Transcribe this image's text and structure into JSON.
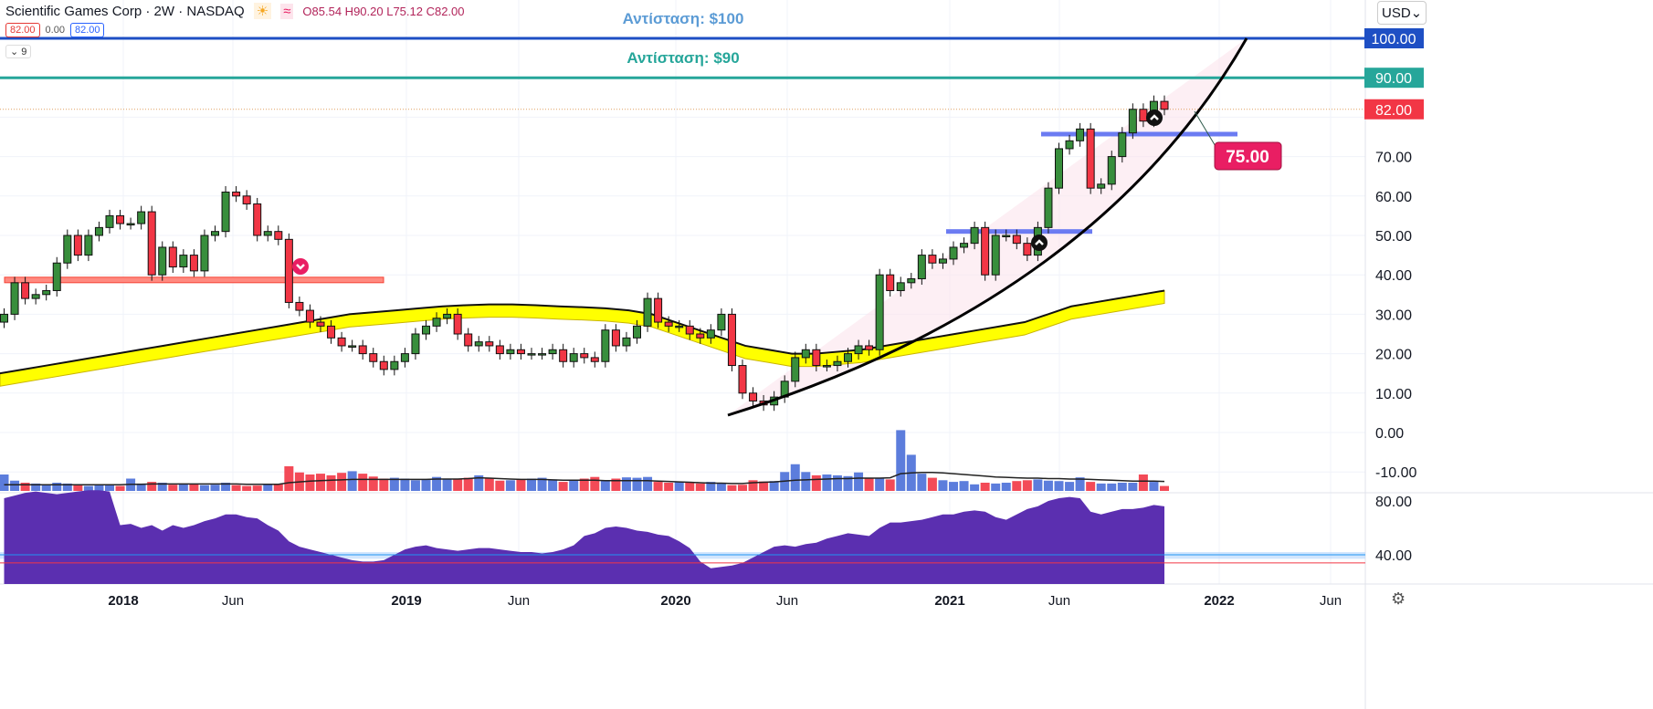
{
  "header": {
    "title": "Scientific Games Corp · 2W · NASDAQ",
    "ohlc": "O85.54 H90.20 L75.12 C82.00",
    "sell": "82.00",
    "spread": "0.00",
    "buy": "82.00",
    "indicators": "9",
    "currency": "USD"
  },
  "icons": {
    "session": "sun-icon",
    "data": "wave-icon",
    "settings": "gear-icon",
    "collapse": "chevron-down-icon"
  },
  "chart_data": {
    "type": "candlestick",
    "annotations": [
      {
        "text": "Αντίσταση: $100",
        "price": 100,
        "color": "#1e4fc4"
      },
      {
        "text": "Αντίσταση: $90",
        "price": 90,
        "color": "#26a69a"
      }
    ],
    "levels": {
      "resistance_100": 100,
      "resistance_90": 90,
      "last_price": 82,
      "support_75": 75.7,
      "support_51": 51,
      "old_support": 38.7,
      "callout": "75.00"
    },
    "price_ticks": [
      "100.00",
      "90.00",
      "82.00",
      "70.00",
      "60.00",
      "50.00",
      "40.00",
      "30.00",
      "20.00",
      "10.00",
      "0.00",
      "-10.00"
    ],
    "osc_ticks": [
      "80.00",
      "40.00"
    ],
    "time_ticks": [
      "2018",
      "Jun",
      "2019",
      "Jun",
      "2020",
      "Jun",
      "2021",
      "Jun",
      "2022",
      "Jun"
    ],
    "ylim": [
      -12,
      102
    ],
    "closes": [
      30,
      38,
      34,
      35,
      36,
      43,
      50,
      45,
      50,
      52,
      55,
      53,
      53,
      56,
      40,
      47,
      42,
      45,
      41,
      50,
      51,
      61,
      60,
      58,
      50,
      51,
      49,
      33,
      31,
      28,
      27,
      24,
      22,
      22,
      20,
      18,
      16,
      18,
      20,
      25,
      27,
      29,
      30,
      25,
      22,
      23,
      22,
      20,
      21,
      20,
      20,
      20,
      21,
      18,
      20,
      19,
      18,
      26,
      22,
      24,
      27,
      34,
      28,
      27,
      27,
      25,
      24,
      26,
      30,
      17,
      10,
      8,
      7,
      9,
      13,
      19,
      21,
      17,
      17,
      18,
      20,
      22,
      21,
      40,
      36,
      38,
      39,
      45,
      43,
      44,
      47,
      48,
      52,
      40,
      50,
      50,
      48,
      45,
      52,
      62,
      72,
      74,
      77,
      62,
      63,
      70,
      76,
      82,
      79,
      84,
      82
    ],
    "moving_average": [
      15,
      16,
      17,
      18,
      19,
      20,
      21,
      22,
      23,
      24,
      25,
      26,
      27,
      28,
      29,
      30,
      30.5,
      31,
      31.5,
      32,
      32.3,
      32.5,
      32.5,
      32.3,
      32,
      31.8,
      31.5,
      31,
      30,
      28,
      26,
      24,
      22,
      21,
      20,
      20,
      20.5,
      21,
      22,
      23,
      24,
      25,
      26,
      27,
      28,
      30,
      32,
      33,
      34,
      35,
      36
    ],
    "volume": [
      40,
      25,
      20,
      18,
      15,
      20,
      18,
      15,
      12,
      15,
      14,
      12,
      30,
      18,
      22,
      20,
      15,
      18,
      16,
      14,
      15,
      20,
      14,
      12,
      13,
      15,
      17,
      60,
      45,
      40,
      42,
      38,
      44,
      48,
      42,
      35,
      30,
      32,
      30,
      26,
      28,
      34,
      30,
      28,
      32,
      38,
      30,
      25,
      26,
      28,
      30,
      32,
      28,
      22,
      26,
      30,
      34,
      25,
      30,
      33,
      32,
      34,
      22,
      20,
      22,
      20,
      18,
      22,
      20,
      14,
      15,
      26,
      23,
      24,
      46,
      65,
      46,
      38,
      40,
      38,
      36,
      45,
      30,
      32,
      28,
      148,
      88,
      42,
      32,
      26,
      22,
      24,
      16,
      20,
      18,
      20,
      24,
      26,
      28,
      25,
      24,
      22,
      33,
      22,
      18,
      18,
      20,
      20,
      40,
      22,
      12,
      10
    ],
    "volume_ma": [
      15,
      15,
      15,
      15,
      15,
      15,
      15,
      15,
      15,
      15,
      15,
      15,
      16,
      16,
      17,
      17,
      17,
      17,
      17,
      17,
      17,
      17,
      17,
      16,
      16,
      16,
      16,
      20,
      22,
      24,
      25,
      26,
      27,
      28,
      28,
      28,
      28,
      28,
      28,
      28,
      28,
      29,
      29,
      29,
      30,
      32,
      31,
      30,
      29,
      28,
      28,
      28,
      27,
      26,
      26,
      26,
      26,
      25,
      25,
      25,
      25,
      25,
      24,
      23,
      22,
      21,
      20,
      19,
      19,
      18,
      18,
      20,
      21,
      22,
      24,
      26,
      27,
      28,
      29,
      30,
      30,
      31,
      31,
      31,
      32,
      42,
      44,
      45,
      45,
      44,
      42,
      40,
      38,
      36,
      34,
      33,
      32,
      31,
      31,
      30,
      30,
      29,
      29,
      28,
      27,
      26,
      25,
      24,
      24,
      24,
      23,
      22
    ],
    "oscillator": [
      82,
      84,
      86,
      87,
      86,
      85,
      86,
      87,
      88,
      88,
      87,
      62,
      63,
      60,
      62,
      58,
      62,
      60,
      62,
      65,
      67,
      70,
      70,
      68,
      67,
      62,
      58,
      50,
      46,
      44,
      42,
      40,
      38,
      36,
      35,
      35,
      36,
      40,
      44,
      46,
      47,
      45,
      44,
      43,
      44,
      45,
      45,
      44,
      43,
      42,
      42,
      41,
      42,
      44,
      47,
      54,
      56,
      60,
      61,
      60,
      58,
      57,
      55,
      54,
      50,
      45,
      35,
      30,
      31,
      32,
      34,
      38,
      42,
      46,
      47,
      46,
      48,
      49,
      52,
      54,
      56,
      55,
      54,
      60,
      64,
      64,
      65,
      66,
      68,
      70,
      70,
      72,
      73,
      72,
      68,
      66,
      70,
      74,
      76,
      80,
      82,
      83,
      82,
      72,
      70,
      72,
      74,
      74,
      75,
      77,
      76,
      74
    ]
  }
}
